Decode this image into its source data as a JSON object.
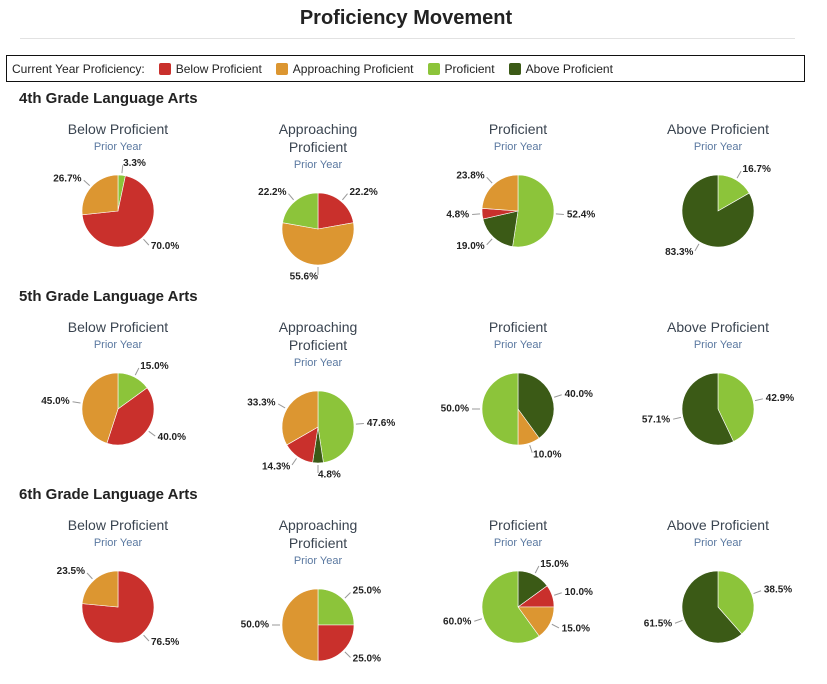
{
  "title": "Proficiency Movement",
  "legend": {
    "title": "Current Year Proficiency:",
    "items": [
      {
        "name": "Below Proficient",
        "color": "#c9302c"
      },
      {
        "name": "Approaching Proficient",
        "color": "#dc9631"
      },
      {
        "name": "Proficient",
        "color": "#8cc43a"
      },
      {
        "name": "Above Proficient",
        "color": "#3b5a16"
      }
    ]
  },
  "sections": [
    "4th Grade Language Arts",
    "5th Grade Language Arts",
    "6th Grade Language Arts"
  ],
  "chart_data": [
    {
      "type": "pie",
      "title": "Below Proficient",
      "subtitle": "Prior Year",
      "categories": [
        "Proficient",
        "Below Proficient",
        "Approaching Proficient"
      ],
      "values": [
        3.3,
        70.0,
        26.7
      ],
      "value_labels": [
        "3.3%",
        "70.0%",
        "26.7%"
      ],
      "colors": [
        "#8cc43a",
        "#c9302c",
        "#dc9631"
      ]
    },
    {
      "type": "pie",
      "title": "Approaching Proficient",
      "subtitle": "Prior Year",
      "categories": [
        "Below Proficient",
        "Approaching Proficient",
        "Proficient"
      ],
      "values": [
        22.2,
        55.6,
        22.2
      ],
      "value_labels": [
        "22.2%",
        "55.6%",
        "22.2%"
      ],
      "colors": [
        "#c9302c",
        "#dc9631",
        "#8cc43a"
      ]
    },
    {
      "type": "pie",
      "title": "Proficient",
      "subtitle": "Prior Year",
      "categories": [
        "Proficient",
        "Above Proficient",
        "Below Proficient",
        "Approaching Proficient"
      ],
      "values": [
        52.4,
        19.0,
        4.8,
        23.8
      ],
      "value_labels": [
        "52.4%",
        "19.0%",
        "4.8%",
        "23.8%"
      ],
      "colors": [
        "#8cc43a",
        "#3b5a16",
        "#c9302c",
        "#dc9631"
      ]
    },
    {
      "type": "pie",
      "title": "Above Proficient",
      "subtitle": "Prior Year",
      "categories": [
        "Proficient",
        "Above Proficient"
      ],
      "values": [
        16.7,
        83.3
      ],
      "value_labels": [
        "16.7%",
        "83.3%"
      ],
      "colors": [
        "#8cc43a",
        "#3b5a16"
      ]
    },
    {
      "type": "pie",
      "title": "Below Proficient",
      "subtitle": "Prior Year",
      "categories": [
        "Proficient",
        "Below Proficient",
        "Approaching Proficient"
      ],
      "values": [
        15.0,
        40.0,
        45.0
      ],
      "value_labels": [
        "15.0%",
        "40.0%",
        "45.0%"
      ],
      "colors": [
        "#8cc43a",
        "#c9302c",
        "#dc9631"
      ]
    },
    {
      "type": "pie",
      "title": "Approaching Proficient",
      "subtitle": "Prior Year",
      "categories": [
        "Proficient",
        "Above Proficient",
        "Below Proficient",
        "Approaching Proficient"
      ],
      "values": [
        47.6,
        4.8,
        14.3,
        33.3
      ],
      "value_labels": [
        "47.6%",
        "4.8%",
        "14.3%",
        "33.3%"
      ],
      "colors": [
        "#8cc43a",
        "#3b5a16",
        "#c9302c",
        "#dc9631"
      ]
    },
    {
      "type": "pie",
      "title": "Proficient",
      "subtitle": "Prior Year",
      "categories": [
        "Above Proficient",
        "Approaching Proficient",
        "Proficient"
      ],
      "values": [
        40.0,
        10.0,
        50.0
      ],
      "value_labels": [
        "40.0%",
        "10.0%",
        "50.0%"
      ],
      "colors": [
        "#3b5a16",
        "#dc9631",
        "#8cc43a"
      ]
    },
    {
      "type": "pie",
      "title": "Above Proficient",
      "subtitle": "Prior Year",
      "categories": [
        "Proficient",
        "Above Proficient"
      ],
      "values": [
        42.9,
        57.1
      ],
      "value_labels": [
        "42.9%",
        "57.1%"
      ],
      "colors": [
        "#8cc43a",
        "#3b5a16"
      ]
    },
    {
      "type": "pie",
      "title": "Below Proficient",
      "subtitle": "Prior Year",
      "categories": [
        "Below Proficient",
        "Approaching Proficient"
      ],
      "values": [
        76.5,
        23.5
      ],
      "value_labels": [
        "76.5%",
        "23.5%"
      ],
      "colors": [
        "#c9302c",
        "#dc9631"
      ]
    },
    {
      "type": "pie",
      "title": "Approaching Proficient",
      "subtitle": "Prior Year",
      "categories": [
        "Proficient",
        "Below Proficient",
        "Approaching Proficient"
      ],
      "values": [
        25.0,
        25.0,
        50.0
      ],
      "value_labels": [
        "25.0%",
        "25.0%",
        "50.0%"
      ],
      "colors": [
        "#8cc43a",
        "#c9302c",
        "#dc9631"
      ]
    },
    {
      "type": "pie",
      "title": "Proficient",
      "subtitle": "Prior Year",
      "categories": [
        "Above Proficient",
        "Below Proficient",
        "Approaching Proficient",
        "Proficient"
      ],
      "values": [
        15.0,
        10.0,
        15.0,
        60.0
      ],
      "value_labels": [
        "15.0%",
        "10.0%",
        "15.0%",
        "60.0%"
      ],
      "colors": [
        "#3b5a16",
        "#c9302c",
        "#dc9631",
        "#8cc43a"
      ]
    },
    {
      "type": "pie",
      "title": "Above Proficient",
      "subtitle": "Prior Year",
      "categories": [
        "Proficient",
        "Above Proficient"
      ],
      "values": [
        38.5,
        61.5
      ],
      "value_labels": [
        "38.5%",
        "61.5%"
      ],
      "colors": [
        "#8cc43a",
        "#3b5a16"
      ]
    }
  ]
}
